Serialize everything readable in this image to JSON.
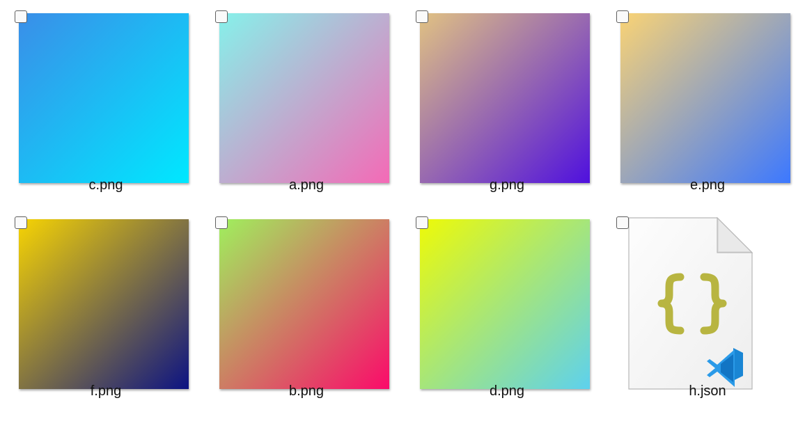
{
  "files": [
    {
      "name": "c.png",
      "kind": "image",
      "gradient": [
        "#3a8ee8",
        "#00e8ff"
      ],
      "checked": false
    },
    {
      "name": "a.png",
      "kind": "image",
      "gradient": [
        "#86f1ea",
        "#f46ab6"
      ],
      "checked": false
    },
    {
      "name": "g.png",
      "kind": "image",
      "gradient": [
        "#e1c282",
        "#4f10de"
      ],
      "checked": false
    },
    {
      "name": "e.png",
      "kind": "image",
      "gradient": [
        "#fad374",
        "#3c78ff"
      ],
      "checked": false
    },
    {
      "name": "f.png",
      "kind": "image",
      "gradient": [
        "#f7d403",
        "#0c1383"
      ],
      "checked": false
    },
    {
      "name": "b.png",
      "kind": "image",
      "gradient": [
        "#9ff05d",
        "#fb0a6a"
      ],
      "checked": false
    },
    {
      "name": "d.png",
      "kind": "image",
      "gradient": [
        "#eefa07",
        "#5dd1ee"
      ],
      "checked": false
    },
    {
      "name": "h.json",
      "kind": "json",
      "icon": "json-file-icon",
      "badge": "vscode-logo-icon",
      "brace_color": "#b8b541",
      "badge_color": "#1a86d4",
      "checked": false
    }
  ]
}
